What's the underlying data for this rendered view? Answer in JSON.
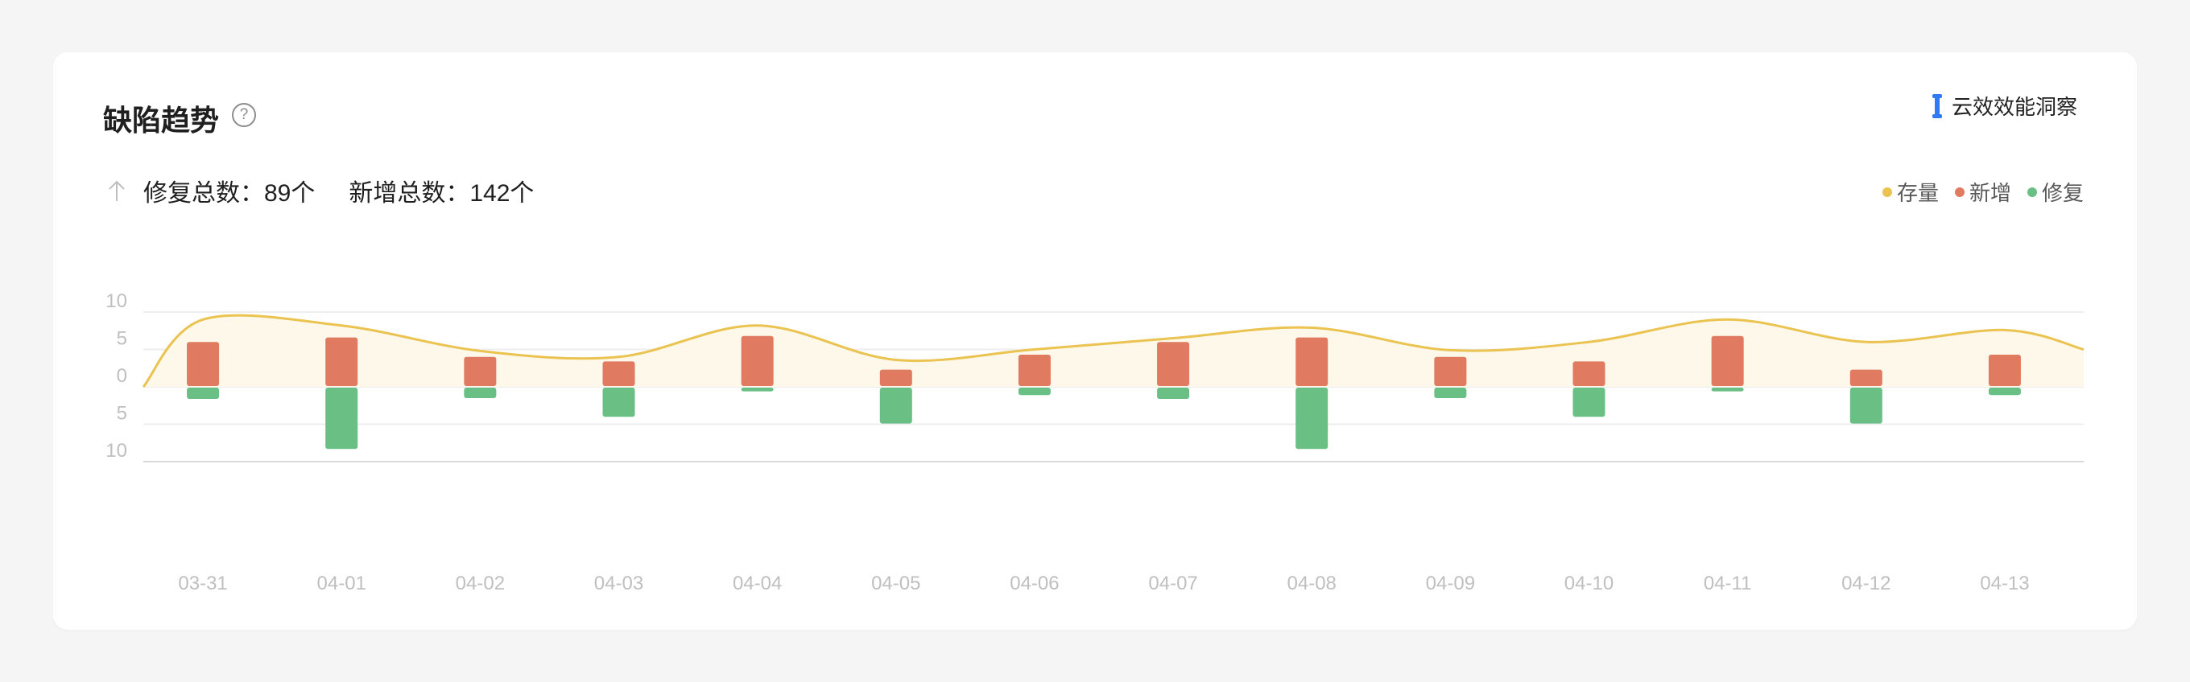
{
  "header": {
    "title": "缺陷趋势",
    "help_icon": "question-circle-icon",
    "brand_label": "云效效能洞察",
    "brand_icon": "yunxiao-logo-icon"
  },
  "summary": {
    "arrow_icon": "arrow-up-icon",
    "fixed_total": "修复总数：89个",
    "new_total": "新增总数：142个"
  },
  "chart_data": {
    "type": "bar",
    "categories": [
      "03-31",
      "04-01",
      "04-02",
      "04-03",
      "04-04",
      "04-05",
      "04-06",
      "04-07",
      "04-08",
      "04-09",
      "04-10",
      "04-11",
      "04-12",
      "04-13"
    ],
    "y_ticks": [
      "10",
      "5",
      "0",
      "5",
      "10"
    ],
    "ylim": [
      -10,
      10
    ],
    "grid": true,
    "legend_position": "top-right",
    "series": [
      {
        "name": "存量",
        "type": "area",
        "color": "#ebc351",
        "values": [
          9,
          8.2,
          4.8,
          4,
          8.2,
          3.6,
          5,
          6.5,
          7.9,
          4.9,
          6,
          9,
          6,
          7.6
        ]
      },
      {
        "name": "新增",
        "type": "bar",
        "color": "#e07a60",
        "values": [
          6,
          6.6,
          4,
          3.4,
          6.8,
          2.3,
          4.3,
          6,
          6.6,
          4,
          3.4,
          6.8,
          2.3,
          4.3
        ]
      },
      {
        "name": "修复",
        "type": "bar",
        "color": "#69bf84",
        "values": [
          -1.5,
          -8.2,
          -1.4,
          -3.9,
          -0.5,
          -4.8,
          -1,
          -1.5,
          -8.2,
          -1.4,
          -3.9,
          -0.5,
          -4.8,
          -1
        ]
      }
    ]
  }
}
